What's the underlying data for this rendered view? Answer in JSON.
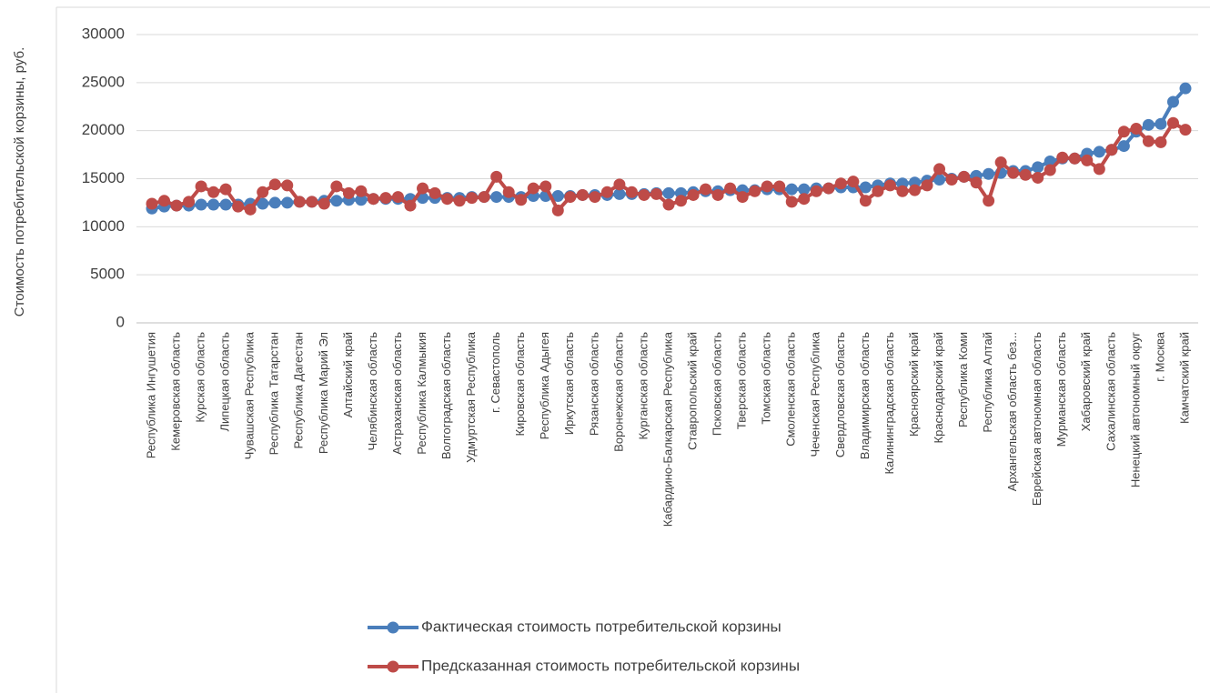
{
  "chart_data": {
    "type": "line",
    "ylabel": "Стоимость потребительской корзины, руб.",
    "categories": [
      "Республика Ингушетия",
      null,
      "Кемеровская область",
      null,
      "Курская область",
      null,
      "Липецкая область",
      null,
      "Чувашская Республика",
      null,
      "Республика Татарстан",
      null,
      "Республика Дагестан",
      null,
      "Республика Марий Эл",
      null,
      "Алтайский край",
      null,
      "Челябинская область",
      null,
      "Астраханская область",
      null,
      "Республика Калмыкия",
      null,
      "Волгоградская область",
      null,
      "Удмуртская Республика",
      null,
      "г. Севастополь",
      null,
      "Кировская область",
      null,
      "Республика Адыгея",
      null,
      "Иркутская область",
      null,
      "Рязанская область",
      null,
      "Воронежская область",
      null,
      "Курганская область",
      null,
      "Кабардино-Балкарская Республика",
      null,
      "Ставропольский край",
      null,
      "Псковская область",
      null,
      "Тверская область",
      null,
      "Томская область",
      null,
      "Смоленская область",
      null,
      "Чеченская Республика",
      null,
      "Свердловская область",
      null,
      "Владимирская область",
      null,
      "Калининградская область",
      null,
      "Красноярский край",
      null,
      "Краснодарский край",
      null,
      "Республика Коми",
      null,
      "Республика Алтай",
      null,
      "Архангельская область без...",
      null,
      "Еврейская автономная область",
      null,
      "Мурманская область",
      null,
      "Хабаровский край",
      null,
      "Сахалинская область",
      null,
      "Ненецкий автономный округ",
      null,
      "г. Москва",
      null,
      "Камчатский край"
    ],
    "series": [
      {
        "name": "Фактическая стоимость потребительской корзины",
        "color": "#4a7ebb",
        "values": [
          11900,
          12100,
          12200,
          12200,
          12300,
          12300,
          12300,
          12300,
          12400,
          12400,
          12500,
          12500,
          12600,
          12600,
          12700,
          12700,
          12800,
          12800,
          12900,
          12900,
          12900,
          12900,
          13000,
          13000,
          13000,
          13000,
          13100,
          13100,
          13100,
          13100,
          13100,
          13200,
          13200,
          13200,
          13200,
          13300,
          13300,
          13300,
          13400,
          13400,
          13400,
          13500,
          13500,
          13500,
          13600,
          13700,
          13700,
          13800,
          13800,
          13800,
          13900,
          13900,
          13900,
          13900,
          14000,
          14000,
          14100,
          14100,
          14100,
          14300,
          14500,
          14500,
          14600,
          14800,
          14900,
          15000,
          15200,
          15300,
          15500,
          15600,
          15800,
          15800,
          16200,
          16800,
          17100,
          17100,
          17600,
          17800,
          18000,
          18400,
          19900,
          20600,
          20700,
          23000,
          24400
        ]
      },
      {
        "name": "Предсказанная стоимость потребительской корзины",
        "color": "#be4b48",
        "values": [
          12400,
          12700,
          12200,
          12600,
          14200,
          13600,
          13900,
          12100,
          11800,
          13600,
          14400,
          14300,
          12600,
          12600,
          12400,
          14200,
          13500,
          13700,
          12900,
          13000,
          13100,
          12200,
          14000,
          13500,
          12900,
          12700,
          13000,
          13100,
          15200,
          13600,
          12800,
          14000,
          14200,
          11700,
          13100,
          13300,
          13100,
          13600,
          14400,
          13600,
          13300,
          13400,
          12300,
          12700,
          13300,
          13900,
          13300,
          14000,
          13100,
          13700,
          14200,
          14200,
          12600,
          12900,
          13700,
          14000,
          14500,
          14700,
          12700,
          13700,
          14300,
          13700,
          13800,
          14300,
          16000,
          14900,
          15200,
          14600,
          12700,
          16700,
          15600,
          15400,
          15100,
          15900,
          17200,
          17100,
          16900,
          16000,
          18000,
          19900,
          20200,
          18900,
          18800,
          20800,
          20100
        ]
      }
    ],
    "ylim": [
      0,
      30000
    ],
    "yticks": [
      0,
      5000,
      10000,
      15000,
      20000,
      25000,
      30000
    ],
    "grid": true,
    "legend": "bottom"
  }
}
